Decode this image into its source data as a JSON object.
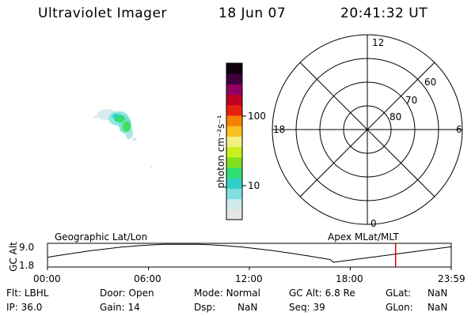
{
  "header": {
    "instrument": "Ultraviolet Imager",
    "date": "18 Jun 07",
    "time": "20:41:32 UT"
  },
  "colorbar": {
    "unit_label": "photon cm⁻²s⁻¹",
    "ticks": [
      {
        "label": "100",
        "value": 100
      },
      {
        "label": "10",
        "value": 10
      }
    ],
    "colors": [
      "#e6e6e6",
      "#cfe9ec",
      "#7fe0e0",
      "#2fd0c8",
      "#30e070",
      "#80e020",
      "#c8f020",
      "#f0f080",
      "#f8c020",
      "#f88000",
      "#e82010",
      "#c00020",
      "#900060",
      "#400040",
      "#100010"
    ]
  },
  "polar_plot": {
    "mlt_labels": [
      {
        "label": "12",
        "mlt": 12
      },
      {
        "label": "6",
        "mlt": 6
      },
      {
        "label": "0",
        "mlt": 0
      },
      {
        "label": "18",
        "mlt": 18
      }
    ],
    "lat_labels": [
      {
        "label": "60",
        "lat": 60
      },
      {
        "label": "70",
        "lat": 70
      },
      {
        "label": "80",
        "lat": 80
      }
    ]
  },
  "timeline": {
    "left_title": "Geographic Lat/Lon",
    "right_title": "Apex MLat/MLT",
    "y_axis_label": "GC Alt",
    "y_ticks": [
      "9.0",
      "1.8"
    ],
    "x_ticks": [
      "00:00",
      "06:00",
      "12:00",
      "18:00",
      "23:59"
    ],
    "current_time_marker_hours": 20.69,
    "marker_color": "#e00000"
  },
  "footer": {
    "row1": [
      {
        "key": "Flt:",
        "value": "LBHL"
      },
      {
        "key": "Door:",
        "value": "Open"
      },
      {
        "key": "Mode:",
        "value": "Normal"
      },
      {
        "key": "GC Alt:",
        "value": "6.8 Re"
      },
      {
        "key": "GLat:",
        "value": "NaN"
      }
    ],
    "row2": [
      {
        "key": "IP:",
        "value": "36.0"
      },
      {
        "key": "Gain:",
        "value": "14"
      },
      {
        "key": "Dsp:",
        "value": "NaN"
      },
      {
        "key": "Seq:",
        "value": "39"
      },
      {
        "key": "GLon:",
        "value": "NaN"
      }
    ]
  }
}
